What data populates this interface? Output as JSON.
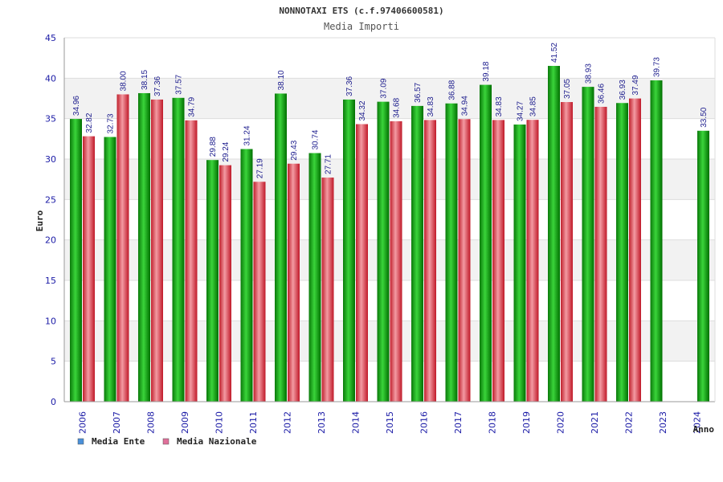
{
  "chart_data": {
    "type": "bar",
    "title": "NONNOTAXI ETS (c.f.97406600581)",
    "subtitle": "Media Importi",
    "xlabel": "Anno",
    "ylabel": "Euro",
    "ylim": [
      0,
      45
    ],
    "yticks": [
      0,
      5,
      10,
      15,
      20,
      25,
      30,
      35,
      40,
      45
    ],
    "categories": [
      "2006",
      "2007",
      "2008",
      "2009",
      "2010",
      "2011",
      "2012",
      "2013",
      "2014",
      "2015",
      "2016",
      "2017",
      "2018",
      "2019",
      "2020",
      "2021",
      "2022",
      "2023",
      "2024"
    ],
    "series": [
      {
        "name": "Media Ente",
        "color": "#00a000",
        "legend_color": "#4a90d9",
        "values": [
          34.96,
          32.73,
          38.15,
          37.57,
          29.88,
          31.24,
          38.1,
          30.74,
          37.36,
          37.09,
          36.57,
          36.88,
          39.18,
          34.27,
          41.52,
          38.93,
          36.93,
          39.73,
          null
        ],
        "labels": [
          "34.96",
          "32.73",
          "38.15",
          "37.57",
          "29.88",
          "31.24",
          "38.10",
          "30.74",
          "37.36",
          "37.09",
          "36.57",
          "36.88",
          "39.18",
          "34.27",
          "41.52",
          "38.93",
          "36.93",
          "39.73",
          null
        ]
      },
      {
        "name": "Media Nazionale",
        "color": "#e03040",
        "legend_color": "#e0709a",
        "values": [
          32.82,
          38.0,
          37.36,
          34.79,
          29.24,
          27.19,
          29.43,
          27.71,
          34.32,
          34.68,
          34.83,
          34.94,
          34.83,
          34.85,
          37.05,
          36.46,
          37.49,
          null,
          33.5
        ],
        "labels": [
          "32.82",
          "38.00",
          "37.36",
          "34.79",
          "29.24",
          "27.19",
          "29.43",
          "27.71",
          "34.32",
          "34.68",
          "34.83",
          "34.94",
          "34.83",
          "34.85",
          "37.05",
          "36.46",
          "37.49",
          null,
          "33.50"
        ]
      }
    ],
    "special_colors": {
      "2024_nazionale": "#00a000"
    },
    "grid": true,
    "legend_position": "bottom-left"
  }
}
